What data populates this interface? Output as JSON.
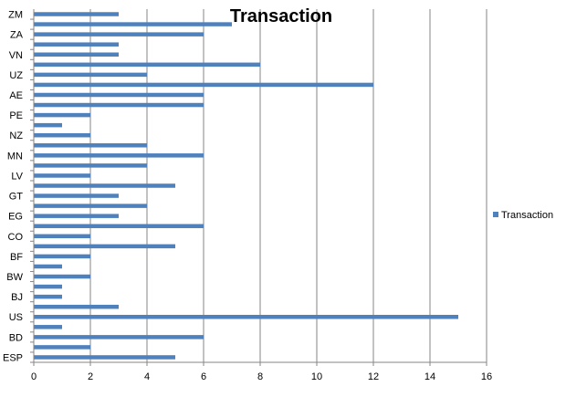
{
  "chart_data": {
    "type": "bar",
    "orientation": "horizontal",
    "title": "Transaction",
    "xlabel": "",
    "ylabel": "",
    "xlim": [
      0,
      16
    ],
    "x_ticks": [
      0,
      2,
      4,
      6,
      8,
      10,
      12,
      14,
      16
    ],
    "grid": "vertical",
    "legend_position": "right",
    "bar_color": "#4F81BD",
    "categories": [
      "ESP",
      "",
      "BD",
      "",
      "US",
      "",
      "BJ",
      "",
      "BW",
      "",
      "BF",
      "",
      "CO",
      "",
      "EG",
      "",
      "GT",
      "",
      "LV",
      "",
      "MN",
      "",
      "NZ",
      "",
      "PE",
      "",
      "AE",
      "",
      "UZ",
      "",
      "VN",
      "",
      "ZA",
      "",
      "ZM"
    ],
    "series": [
      {
        "name": "Transaction",
        "values": [
          5,
          2,
          6,
          1,
          15,
          3,
          1,
          1,
          2,
          1,
          2,
          5,
          2,
          6,
          3,
          4,
          3,
          5,
          2,
          4,
          6,
          4,
          2,
          1,
          2,
          6,
          6,
          12,
          4,
          8,
          3,
          3,
          6,
          7,
          3
        ]
      }
    ]
  }
}
